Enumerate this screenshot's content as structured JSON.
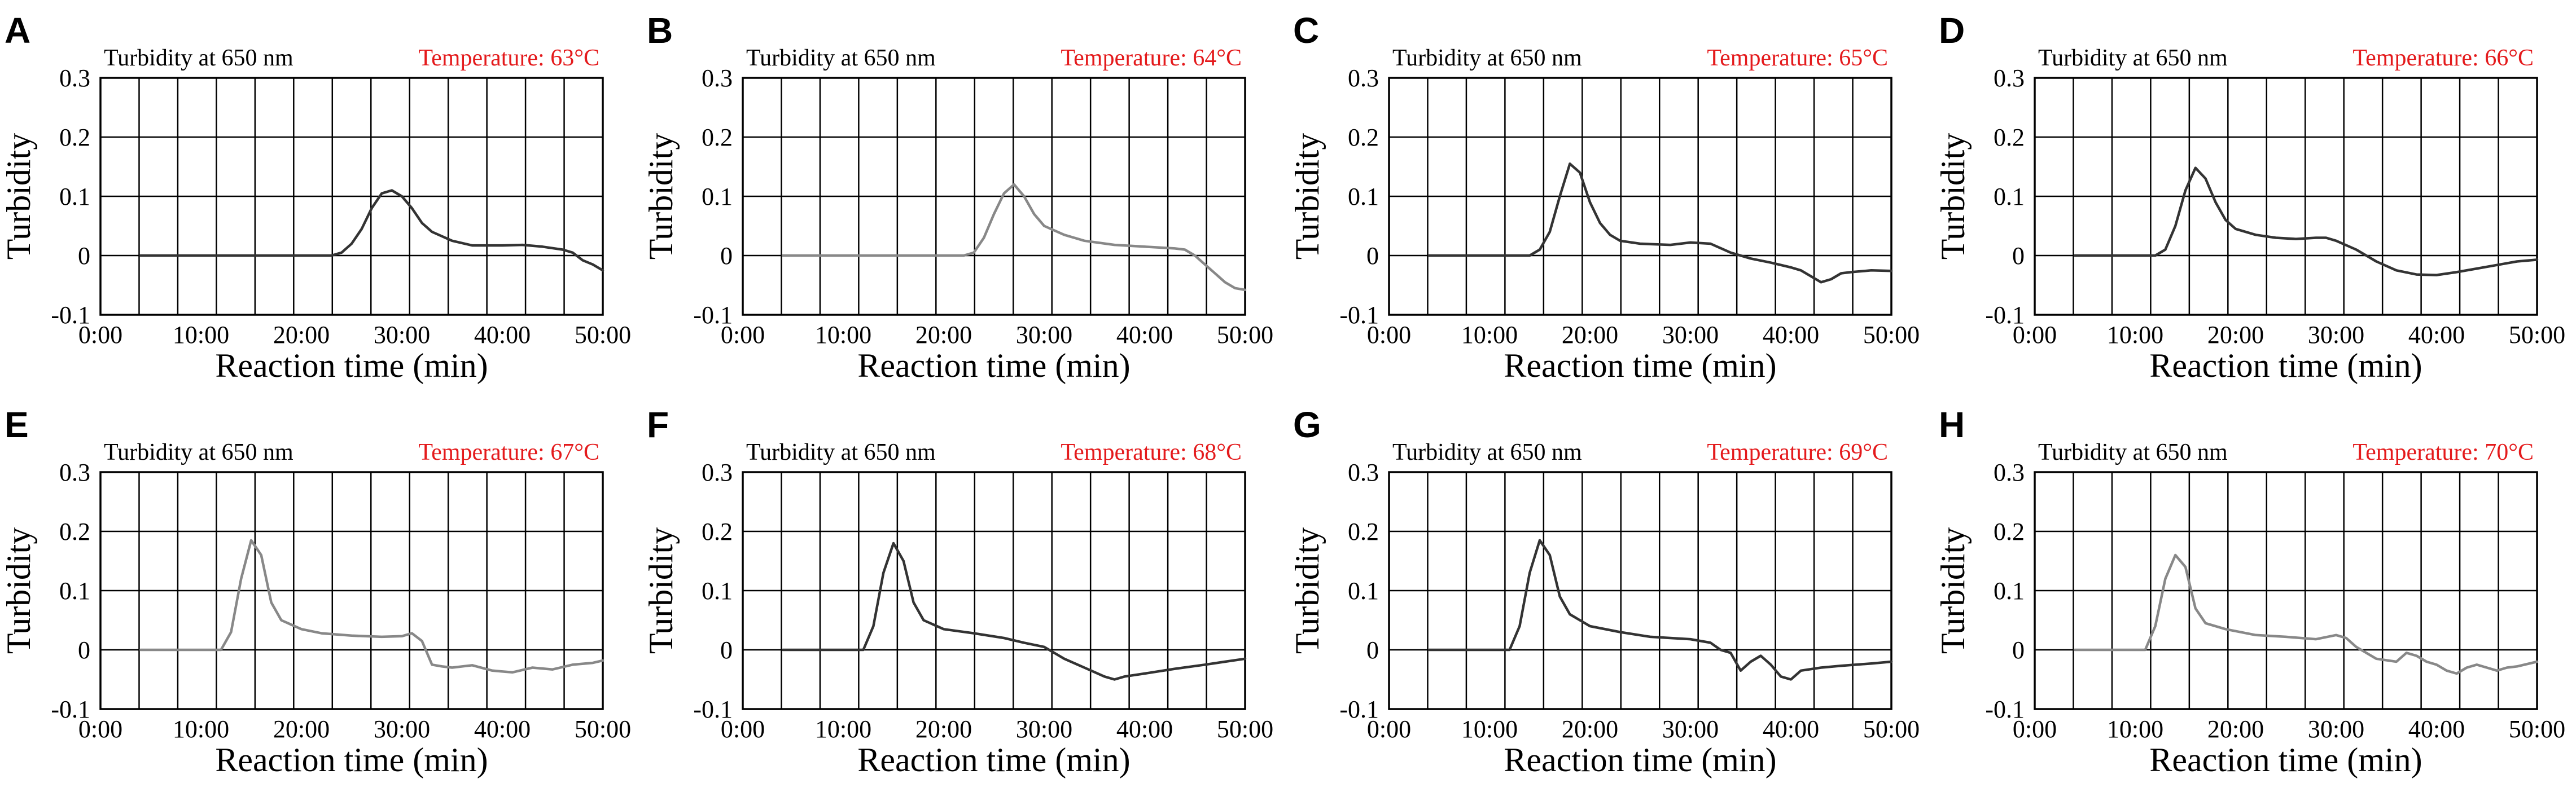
{
  "figure": {
    "background": "#ffffff",
    "header_color": "#e41a1c",
    "axis_color": "#000000"
  },
  "chart_data": [
    {
      "panel": "A",
      "type": "line",
      "header_left": "Turbidity at 650 nm",
      "header_right": "Temperature:  63°C",
      "xlabel": "Reaction time (min)",
      "ylabel": "Turbidity",
      "xlim": [
        0,
        50
      ],
      "ylim": [
        -0.1,
        0.3
      ],
      "xticks": [
        "0:00",
        "10:00",
        "20:00",
        "30:00",
        "40:00",
        "50:00"
      ],
      "yticks": [
        "0.3",
        "0.2",
        "0.1",
        "0",
        "-0.1"
      ],
      "grid": true,
      "color": "#333333",
      "series": [
        {
          "name": "turbidity",
          "x": [
            4,
            10,
            15,
            20,
            23,
            24,
            25,
            26,
            27,
            28,
            29,
            30,
            31,
            32,
            33,
            35,
            37,
            40,
            42,
            44,
            46,
            47,
            48,
            49,
            50
          ],
          "y": [
            0,
            0,
            0,
            0,
            0,
            0.005,
            0.02,
            0.045,
            0.08,
            0.105,
            0.11,
            0.1,
            0.08,
            0.055,
            0.04,
            0.025,
            0.017,
            0.017,
            0.018,
            0.015,
            0.01,
            0.005,
            -0.008,
            -0.015,
            -0.025
          ]
        }
      ]
    },
    {
      "panel": "B",
      "type": "line",
      "header_left": "Turbidity at 650 nm",
      "header_right": "Temperature:  64°C",
      "xlabel": "Reaction time (min)",
      "ylabel": "Turbidity",
      "xlim": [
        0,
        50
      ],
      "ylim": [
        -0.1,
        0.3
      ],
      "xticks": [
        "0:00",
        "10:00",
        "20:00",
        "30:00",
        "40:00",
        "50:00"
      ],
      "yticks": [
        "0.3",
        "0.2",
        "0.1",
        "0",
        "-0.1"
      ],
      "grid": true,
      "color": "#888888",
      "series": [
        {
          "name": "turbidity",
          "x": [
            4,
            10,
            15,
            20,
            22,
            23,
            24,
            25,
            26,
            27,
            28,
            29,
            30,
            32,
            34,
            37,
            40,
            43,
            44,
            45,
            46,
            47,
            48,
            49,
            50
          ],
          "y": [
            0,
            0,
            0,
            0,
            0,
            0.005,
            0.03,
            0.07,
            0.105,
            0.12,
            0.1,
            0.07,
            0.05,
            0.035,
            0.025,
            0.018,
            0.015,
            0.012,
            0.01,
            0.0,
            -0.015,
            -0.03,
            -0.045,
            -0.055,
            -0.058
          ]
        }
      ]
    },
    {
      "panel": "C",
      "type": "line",
      "header_left": "Turbidity at 650 nm",
      "header_right": "Temperature:  65°C",
      "xlabel": "Reaction time (min)",
      "ylabel": "Turbidity",
      "xlim": [
        0,
        50
      ],
      "ylim": [
        -0.1,
        0.3
      ],
      "xticks": [
        "0:00",
        "10:00",
        "20:00",
        "30:00",
        "40:00",
        "50:00"
      ],
      "yticks": [
        "0.3",
        "0.2",
        "0.1",
        "0",
        "-0.1"
      ],
      "grid": true,
      "color": "#333333",
      "series": [
        {
          "name": "turbidity",
          "x": [
            4,
            10,
            14,
            15,
            16,
            17,
            18,
            19,
            20,
            21,
            22,
            23,
            25,
            28,
            30,
            32,
            34,
            36,
            38,
            40,
            41,
            42,
            43,
            44,
            45,
            46,
            48,
            50
          ],
          "y": [
            0,
            0,
            0,
            0.01,
            0.04,
            0.1,
            0.155,
            0.14,
            0.09,
            0.055,
            0.035,
            0.025,
            0.02,
            0.018,
            0.022,
            0.02,
            0.005,
            -0.005,
            -0.012,
            -0.02,
            -0.025,
            -0.035,
            -0.045,
            -0.04,
            -0.03,
            -0.028,
            -0.025,
            -0.026
          ]
        }
      ]
    },
    {
      "panel": "D",
      "type": "line",
      "header_left": "Turbidity at 650 nm",
      "header_right": "Temperature:  66°C",
      "xlabel": "Reaction time (min)",
      "ylabel": "Turbidity",
      "xlim": [
        0,
        50
      ],
      "ylim": [
        -0.1,
        0.3
      ],
      "xticks": [
        "0:00",
        "10:00",
        "20:00",
        "30:00",
        "40:00",
        "50:00"
      ],
      "yticks": [
        "0.3",
        "0.2",
        "0.1",
        "0",
        "-0.1"
      ],
      "grid": true,
      "color": "#333333",
      "series": [
        {
          "name": "turbidity",
          "x": [
            4,
            10,
            12,
            13,
            14,
            15,
            16,
            17,
            18,
            19,
            20,
            22,
            24,
            26,
            28,
            29,
            30,
            32,
            34,
            36,
            38,
            40,
            42,
            44,
            46,
            48,
            50
          ],
          "y": [
            0,
            0,
            0,
            0.01,
            0.05,
            0.11,
            0.148,
            0.13,
            0.09,
            0.06,
            0.045,
            0.035,
            0.03,
            0.028,
            0.03,
            0.03,
            0.025,
            0.01,
            -0.01,
            -0.025,
            -0.032,
            -0.033,
            -0.028,
            -0.022,
            -0.016,
            -0.01,
            -0.007
          ]
        }
      ]
    },
    {
      "panel": "E",
      "type": "line",
      "header_left": "Turbidity at 650 nm",
      "header_right": "Temperature:  67°C",
      "xlabel": "Reaction time (min)",
      "ylabel": "Turbidity",
      "xlim": [
        0,
        50
      ],
      "ylim": [
        -0.1,
        0.3
      ],
      "xticks": [
        "0:00",
        "10:00",
        "20:00",
        "30:00",
        "40:00",
        "50:00"
      ],
      "yticks": [
        "0.3",
        "0.2",
        "0.1",
        "0",
        "-0.1"
      ],
      "grid": true,
      "color": "#888888",
      "series": [
        {
          "name": "turbidity",
          "x": [
            4,
            8,
            12,
            13,
            14,
            15,
            16,
            17,
            18,
            20,
            22,
            25,
            28,
            30,
            31,
            32,
            33,
            34,
            35,
            37,
            39,
            41,
            43,
            45,
            47,
            49,
            50
          ],
          "y": [
            0,
            0,
            0,
            0.03,
            0.12,
            0.185,
            0.16,
            0.08,
            0.05,
            0.035,
            0.028,
            0.024,
            0.022,
            0.023,
            0.028,
            0.015,
            -0.025,
            -0.028,
            -0.03,
            -0.026,
            -0.035,
            -0.038,
            -0.03,
            -0.033,
            -0.025,
            -0.022,
            -0.018
          ]
        }
      ]
    },
    {
      "panel": "F",
      "type": "line",
      "header_left": "Turbidity at 650 nm",
      "header_right": "Temperature:  68°C",
      "xlabel": "Reaction time (min)",
      "ylabel": "Turbidity",
      "xlim": [
        0,
        50
      ],
      "ylim": [
        -0.1,
        0.3
      ],
      "xticks": [
        "0:00",
        "10:00",
        "20:00",
        "30:00",
        "40:00",
        "50:00"
      ],
      "yticks": [
        "0.3",
        "0.2",
        "0.1",
        "0",
        "-0.1"
      ],
      "grid": true,
      "color": "#333333",
      "series": [
        {
          "name": "turbidity",
          "x": [
            4,
            8,
            12,
            13,
            14,
            15,
            16,
            17,
            18,
            20,
            23,
            26,
            28,
            30,
            32,
            34,
            36,
            37,
            38,
            40,
            43,
            46,
            48,
            50
          ],
          "y": [
            0,
            0,
            0,
            0.04,
            0.13,
            0.18,
            0.15,
            0.08,
            0.05,
            0.035,
            0.028,
            0.02,
            0.012,
            0.005,
            -0.015,
            -0.03,
            -0.045,
            -0.05,
            -0.045,
            -0.04,
            -0.032,
            -0.025,
            -0.02,
            -0.015
          ]
        }
      ]
    },
    {
      "panel": "G",
      "type": "line",
      "header_left": "Turbidity at 650 nm",
      "header_right": "Temperature:  69°C",
      "xlabel": "Reaction time (min)",
      "ylabel": "Turbidity",
      "xlim": [
        0,
        50
      ],
      "ylim": [
        -0.1,
        0.3
      ],
      "xticks": [
        "0:00",
        "10:00",
        "20:00",
        "30:00",
        "40:00",
        "50:00"
      ],
      "yticks": [
        "0.3",
        "0.2",
        "0.1",
        "0",
        "-0.1"
      ],
      "grid": true,
      "color": "#333333",
      "series": [
        {
          "name": "turbidity",
          "x": [
            4,
            8,
            12,
            13,
            14,
            15,
            16,
            17,
            18,
            20,
            23,
            26,
            30,
            32,
            33,
            34,
            35,
            36,
            37,
            38,
            39,
            40,
            41,
            43,
            45,
            48,
            50
          ],
          "y": [
            0,
            0,
            0,
            0.04,
            0.13,
            0.185,
            0.16,
            0.09,
            0.06,
            0.04,
            0.03,
            0.022,
            0.018,
            0.012,
            0.0,
            -0.005,
            -0.035,
            -0.02,
            -0.01,
            -0.025,
            -0.045,
            -0.05,
            -0.035,
            -0.03,
            -0.027,
            -0.023,
            -0.02
          ]
        }
      ]
    },
    {
      "panel": "H",
      "type": "line",
      "header_left": "Turbidity at 650 nm",
      "header_right": "Temperature:  70°C",
      "xlabel": "Reaction time (min)",
      "ylabel": "Turbidity",
      "xlim": [
        0,
        50
      ],
      "ylim": [
        -0.1,
        0.3
      ],
      "xticks": [
        "0:00",
        "10:00",
        "20:00",
        "30:00",
        "40:00",
        "50:00"
      ],
      "yticks": [
        "0.3",
        "0.2",
        "0.1",
        "0",
        "-0.1"
      ],
      "grid": true,
      "color": "#888888",
      "series": [
        {
          "name": "turbidity",
          "x": [
            4,
            8,
            11,
            12,
            13,
            14,
            15,
            16,
            17,
            19,
            22,
            25,
            28,
            30,
            31,
            32,
            34,
            36,
            37,
            38,
            39,
            40,
            41,
            42,
            43,
            44,
            45,
            46,
            47,
            48,
            50
          ],
          "y": [
            0,
            0,
            0,
            0.04,
            0.12,
            0.16,
            0.14,
            0.07,
            0.045,
            0.035,
            0.025,
            0.022,
            0.018,
            0.025,
            0.02,
            0.005,
            -0.015,
            -0.02,
            -0.005,
            -0.01,
            -0.02,
            -0.025,
            -0.035,
            -0.04,
            -0.03,
            -0.025,
            -0.03,
            -0.035,
            -0.03,
            -0.028,
            -0.02
          ]
        }
      ]
    }
  ]
}
